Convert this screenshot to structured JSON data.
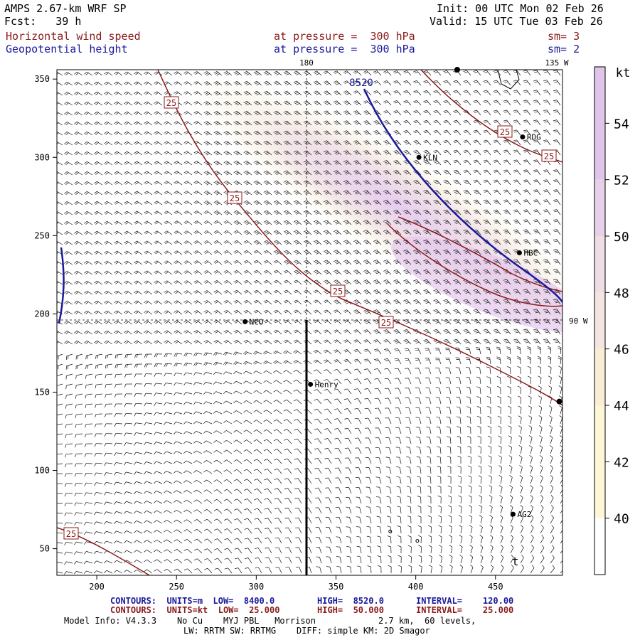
{
  "header": {
    "model": "AMPS 2.67-km WRF SP",
    "forecast": "Fcst:   39 h",
    "init": "Init: 00 UTC Mon 02 Feb 26",
    "valid": "Valid: 15 UTC Tue 03 Feb 26",
    "field1_name": "Horizontal wind speed",
    "field1_level": "at pressure =  300 hPa",
    "field1_smooth": "sm= 3",
    "field2_name": "Geopotential height",
    "field2_level": "at pressure =  300 hPa",
    "field2_smooth": "sm= 2"
  },
  "colors": {
    "wind_contour": "#8b1a1a",
    "height_contour": "#1a1a9c",
    "shade_low": "#fdf6d4",
    "shade_mid": "#f3e7e4",
    "shade_high": "#e2c6ec"
  },
  "map": {
    "x_ticks": [
      "200",
      "250",
      "300",
      "350",
      "400",
      "450"
    ],
    "y_ticks": [
      "50",
      "100",
      "150",
      "200",
      "250",
      "300",
      "350"
    ],
    "meridian_180": "180",
    "meridian_135w": "135 W",
    "meridian_90w": "90 W",
    "height_label": "8520",
    "wind_contour_label": "25",
    "stations": [
      {
        "name": "RDG",
        "lon": 467,
        "lat": 313
      },
      {
        "name": "KLN",
        "lon": 402,
        "lat": 300
      },
      {
        "name": "HBC",
        "lon": 465,
        "lat": 239
      },
      {
        "name": "NCO",
        "lon": 293,
        "lat": 195
      },
      {
        "name": "Henry",
        "lon": 334,
        "lat": 155
      },
      {
        "name": "AG2",
        "lon": 461,
        "lat": 72
      }
    ],
    "south_pole_lon": 334,
    "south_pole_lat": 195
  },
  "colorbar": {
    "unit": "kt",
    "levels": [
      "40",
      "42",
      "44",
      "46",
      "48",
      "50",
      "52",
      "54"
    ]
  },
  "footer": {
    "line1_label": "CONTOURS:  UNITS=m  LOW=  8400.0",
    "line1_high": "HIGH=  8520.0",
    "line1_interval": "INTERVAL=    120.00",
    "line2_label": "CONTOURS:  UNITS=kt  LOW=  25.000",
    "line2_high": "HIGH=  50.000",
    "line2_interval": "INTERVAL=    25.000",
    "line3": "Model Info: V4.3.3    No Cu    MYJ PBL   Morrison",
    "line3b": "2.7 km,  60 levels,",
    "line4": "LW: RRTM SW: RRTMG    DIFF: simple KM: 2D Smagor"
  }
}
